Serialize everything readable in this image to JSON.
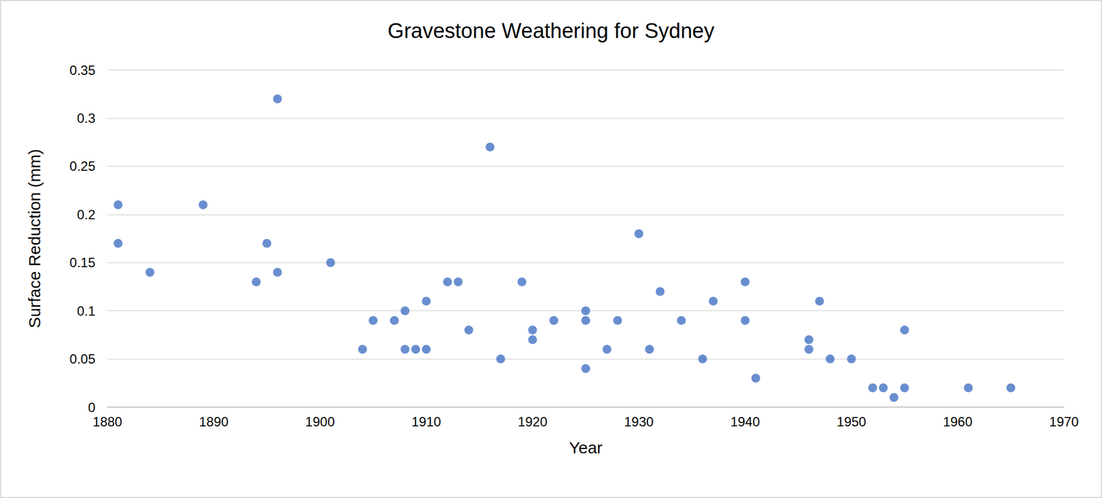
{
  "chart_data": {
    "type": "scatter",
    "title": "Gravestone Weathering for Sydney",
    "x_label": "Year",
    "y_label": "Surface Reduction (mm)",
    "x": [
      1881,
      1881,
      1884,
      1889,
      1894,
      1895,
      1896,
      1896,
      1901,
      1904,
      1905,
      1907,
      1908,
      1908,
      1909,
      1910,
      1910,
      1912,
      1913,
      1914,
      1916,
      1917,
      1919,
      1920,
      1920,
      1922,
      1925,
      1925,
      1925,
      1927,
      1928,
      1930,
      1931,
      1932,
      1934,
      1936,
      1937,
      1940,
      1940,
      1941,
      1946,
      1946,
      1947,
      1948,
      1950,
      1952,
      1953,
      1954,
      1955,
      1955,
      1961,
      1965
    ],
    "values": [
      0.21,
      0.17,
      0.14,
      0.21,
      0.13,
      0.17,
      0.32,
      0.14,
      0.15,
      0.06,
      0.09,
      0.09,
      0.1,
      0.06,
      0.06,
      0.11,
      0.06,
      0.13,
      0.13,
      0.08,
      0.27,
      0.05,
      0.13,
      0.08,
      0.07,
      0.09,
      0.1,
      0.09,
      0.04,
      0.06,
      0.09,
      0.18,
      0.06,
      0.12,
      0.09,
      0.05,
      0.11,
      0.13,
      0.09,
      0.03,
      0.07,
      0.06,
      0.11,
      0.05,
      0.05,
      0.02,
      0.02,
      0.01,
      0.08,
      0.02,
      0.02,
      0.02
    ],
    "color": "#4472c4",
    "marker": "circle",
    "xlim": [
      1880,
      1970
    ],
    "xticks": [
      1880,
      1890,
      1900,
      1910,
      1920,
      1930,
      1940,
      1950,
      1960,
      1970
    ],
    "ylim": [
      0,
      0.35
    ],
    "yticks": [
      0,
      0.05,
      0.1,
      0.15,
      0.2,
      0.25,
      0.3,
      0.35
    ],
    "grid": true
  }
}
